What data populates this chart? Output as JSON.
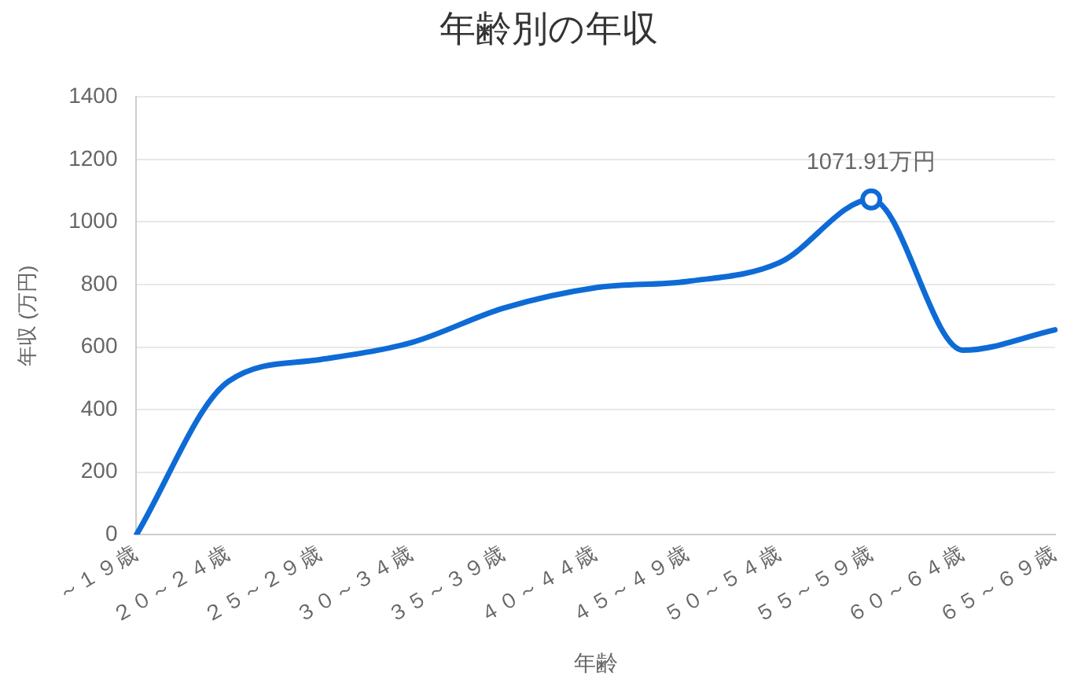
{
  "chart_data": {
    "type": "line",
    "title": "年齢別の年収",
    "xlabel": "年齢",
    "ylabel": "年収 (万円)",
    "categories": [
      "～１９歳",
      "２０～２４歳",
      "２５～２９歳",
      "３０～３４歳",
      "３５～３９歳",
      "４０～４４歳",
      "４５～４９歳",
      "５０～５４歳",
      "５５～５９歳",
      "６０～６４歳",
      "６５～６９歳"
    ],
    "series": [
      {
        "color": "#0e6bd6",
        "values": [
          0,
          490,
          560,
          615,
          725,
          790,
          810,
          870,
          1071.91,
          590,
          655
        ]
      }
    ],
    "ylim": [
      0,
      1400
    ],
    "yticks": [
      0,
      200,
      400,
      600,
      800,
      1000,
      1200,
      1400
    ],
    "grid": "y",
    "legend": false,
    "annotations": [
      {
        "text": "1071.91万円",
        "x": "５５～５９歳",
        "y": 1071.91
      }
    ]
  }
}
